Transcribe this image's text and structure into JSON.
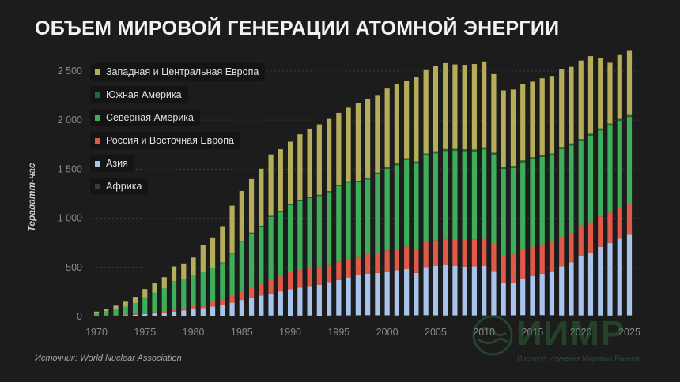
{
  "title": "ОБЪЕМ МИРОВОЙ ГЕНЕРАЦИИ АТОМНОЙ ЭНЕРГИИ",
  "source": "Источник: World Nuclear Association",
  "watermark": {
    "text": "ИИМР",
    "subtitle": "Институт Изучения Мировых Рынков"
  },
  "colors": {
    "background": "#1c1c1c",
    "africa": "#3a3a3a",
    "asia": "#a9c4ec",
    "russia_eastern_europe": "#e05a4a",
    "north_america": "#3fae5c",
    "south_america": "#1f6b35",
    "west_central_europe": "#b5ad5a"
  },
  "chart_data": {
    "type": "bar",
    "stacked": true,
    "ylabel": "Тераватт-час",
    "ylim": [
      0,
      2700
    ],
    "yticks": [
      0,
      500,
      1000,
      1500,
      2000,
      2500
    ],
    "ytick_labels": [
      "0",
      "500",
      "1 000",
      "1 500",
      "2 000",
      "2 500"
    ],
    "xticks": [
      1970,
      1975,
      1980,
      1985,
      1990,
      1995,
      2000,
      2005,
      2010,
      2015,
      2020,
      2025
    ],
    "grid": true,
    "legend_position": "top-left",
    "x": [
      1970,
      1971,
      1972,
      1973,
      1974,
      1975,
      1976,
      1977,
      1978,
      1979,
      1980,
      1981,
      1982,
      1983,
      1984,
      1985,
      1986,
      1987,
      1988,
      1989,
      1990,
      1991,
      1992,
      1993,
      1994,
      1995,
      1996,
      1997,
      1998,
      1999,
      2000,
      2001,
      2002,
      2003,
      2004,
      2005,
      2006,
      2007,
      2008,
      2009,
      2010,
      2011,
      2012,
      2013,
      2014,
      2015,
      2016,
      2017,
      2018,
      2019,
      2020,
      2021,
      2022,
      2023,
      2024,
      2025
    ],
    "series": [
      {
        "name": "Африка",
        "color": "#3a3a3a",
        "values": [
          0,
          0,
          0,
          0,
          0,
          0,
          0,
          0,
          0,
          0,
          0,
          0,
          0,
          0,
          5,
          8,
          9,
          9,
          10,
          11,
          8,
          9,
          10,
          8,
          10,
          11,
          12,
          13,
          14,
          13,
          13,
          11,
          12,
          13,
          14,
          12,
          10,
          12,
          13,
          11,
          12,
          13,
          12,
          13,
          14,
          11,
          15,
          14,
          10,
          12,
          11,
          11,
          10,
          9,
          12,
          12
        ]
      },
      {
        "name": "Азия",
        "color": "#a9c4ec",
        "values": [
          5,
          7,
          10,
          14,
          18,
          25,
          32,
          40,
          50,
          60,
          75,
          85,
          100,
          115,
          135,
          160,
          185,
          205,
          225,
          245,
          270,
          285,
          300,
          315,
          340,
          360,
          385,
          405,
          420,
          430,
          445,
          460,
          470,
          430,
          490,
          505,
          515,
          505,
          495,
          500,
          505,
          450,
          330,
          330,
          370,
          400,
          420,
          440,
          500,
          540,
          610,
          640,
          700,
          740,
          780,
          820
        ]
      },
      {
        "name": "Россия и Восточная Европа",
        "color": "#e05a4a",
        "values": [
          2,
          3,
          4,
          6,
          8,
          10,
          13,
          16,
          20,
          25,
          30,
          35,
          45,
          55,
          70,
          90,
          105,
          120,
          145,
          155,
          175,
          180,
          185,
          185,
          175,
          185,
          190,
          195,
          200,
          205,
          215,
          220,
          230,
          245,
          255,
          260,
          265,
          270,
          275,
          275,
          275,
          280,
          285,
          290,
          295,
          300,
          300,
          305,
          305,
          300,
          305,
          310,
          310,
          310,
          310,
          310
        ]
      },
      {
        "name": "Северная Америка",
        "color": "#3fae5c",
        "values": [
          25,
          45,
          60,
          80,
          110,
          160,
          200,
          230,
          290,
          290,
          310,
          330,
          345,
          375,
          430,
          500,
          545,
          580,
          635,
          655,
          680,
          700,
          710,
          720,
          740,
          770,
          775,
          755,
          760,
          800,
          830,
          850,
          880,
          870,
          880,
          885,
          895,
          900,
          900,
          895,
          910,
          905,
          875,
          880,
          890,
          890,
          890,
          880,
          890,
          890,
          860,
          880,
          875,
          885,
          890,
          890
        ]
      },
      {
        "name": "Южная Америка",
        "color": "#1f6b35",
        "values": [
          0,
          0,
          0,
          0,
          0,
          0,
          0,
          0,
          0,
          0,
          0,
          0,
          0,
          5,
          8,
          10,
          10,
          10,
          10,
          10,
          10,
          11,
          11,
          12,
          12,
          14,
          14,
          14,
          14,
          16,
          18,
          18,
          18,
          20,
          20,
          20,
          20,
          20,
          20,
          20,
          20,
          20,
          20,
          20,
          20,
          20,
          20,
          20,
          20,
          20,
          20,
          20,
          20,
          20,
          20,
          20
        ]
      },
      {
        "name": "Западная и Центральная Европа",
        "color": "#b5ad5a",
        "values": [
          18,
          25,
          36,
          50,
          64,
          85,
          100,
          114,
          150,
          165,
          185,
          275,
          315,
          370,
          480,
          510,
          545,
          580,
          625,
          627,
          637,
          670,
          697,
          716,
          735,
          734,
          750,
          788,
          805,
          791,
          800,
          805,
          785,
          862,
          850,
          870,
          875,
          860,
          860,
          870,
          875,
          800,
          780,
          778,
          780,
          770,
          780,
          790,
          790,
          780,
          800,
          790,
          720,
          620,
          650,
          660
        ]
      }
    ]
  }
}
